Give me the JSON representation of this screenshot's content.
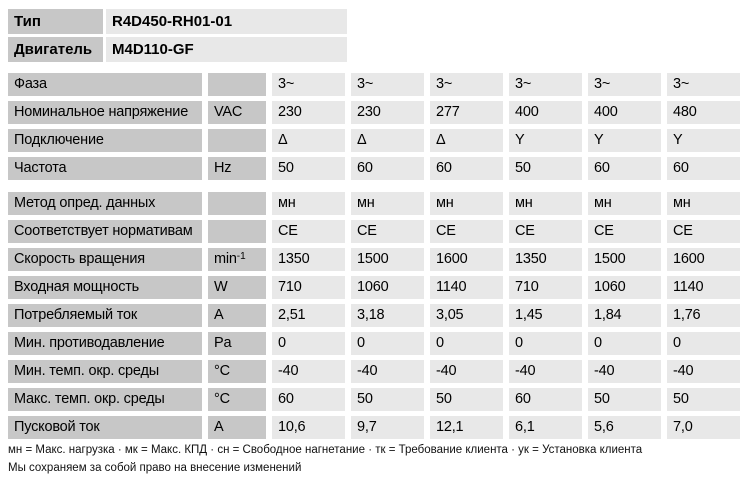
{
  "header": {
    "rows": [
      {
        "label": "Тип",
        "value": "R4D450-RH01-01"
      },
      {
        "label": "Двигатель",
        "value": "M4D110-GF"
      }
    ]
  },
  "table": {
    "section1": [
      {
        "label": "Фаза",
        "unit": "",
        "unit_sup": "",
        "values": [
          "3~",
          "3~",
          "3~",
          "3~",
          "3~",
          "3~"
        ]
      },
      {
        "label": "Номинальное напряжение",
        "unit": "VAC",
        "unit_sup": "",
        "values": [
          "230",
          "230",
          "277",
          "400",
          "400",
          "480"
        ]
      },
      {
        "label": "Подключение",
        "unit": "",
        "unit_sup": "",
        "values": [
          "Δ",
          "Δ",
          "Δ",
          "Y",
          "Y",
          "Y"
        ]
      },
      {
        "label": "Частота",
        "unit": "Hz",
        "unit_sup": "",
        "values": [
          "50",
          "60",
          "60",
          "50",
          "60",
          "60"
        ]
      }
    ],
    "section2": [
      {
        "label": "Метод опред. данных",
        "unit": "",
        "unit_sup": "",
        "values": [
          "мн",
          "мн",
          "мн",
          "мн",
          "мн",
          "мн"
        ]
      },
      {
        "label": "Соответствует нормативам",
        "unit": "",
        "unit_sup": "",
        "values": [
          "CE",
          "CE",
          "CE",
          "CE",
          "CE",
          "CE"
        ]
      },
      {
        "label": "Скорость вращения",
        "unit": "min",
        "unit_sup": "-1",
        "values": [
          "1350",
          "1500",
          "1600",
          "1350",
          "1500",
          "1600"
        ]
      },
      {
        "label": "Входная мощность",
        "unit": "W",
        "unit_sup": "",
        "values": [
          "710",
          "1060",
          "1140",
          "710",
          "1060",
          "1140"
        ]
      },
      {
        "label": "Потребляемый ток",
        "unit": "A",
        "unit_sup": "",
        "values": [
          "2,51",
          "3,18",
          "3,05",
          "1,45",
          "1,84",
          "1,76"
        ]
      },
      {
        "label": "Мин. противодавление",
        "unit": "Pa",
        "unit_sup": "",
        "values": [
          "0",
          "0",
          "0",
          "0",
          "0",
          "0"
        ]
      },
      {
        "label": "Мин. темп. окр. среды",
        "unit": "°C",
        "unit_sup": "",
        "values": [
          "-40",
          "-40",
          "-40",
          "-40",
          "-40",
          "-40"
        ]
      },
      {
        "label": "Макс. темп. окр. среды",
        "unit": "°C",
        "unit_sup": "",
        "values": [
          "60",
          "50",
          "50",
          "60",
          "50",
          "50"
        ]
      },
      {
        "label": "Пусковой ток",
        "unit": "A",
        "unit_sup": "",
        "values": [
          "10,6",
          "9,7",
          "12,1",
          "6,1",
          "5,6",
          "7,0"
        ]
      }
    ]
  },
  "footer": {
    "legend": "мн = Макс. нагрузка · мк = Макс. КПД · сн = Свободное нагнетание · тк = Требование клиента · ук = Установка клиента",
    "note": "Мы сохраняем за собой право на внесение изменений"
  },
  "colors": {
    "label_cell": "#c7c7c7",
    "value_cell": "#e8e8e8",
    "text": "#000000"
  }
}
